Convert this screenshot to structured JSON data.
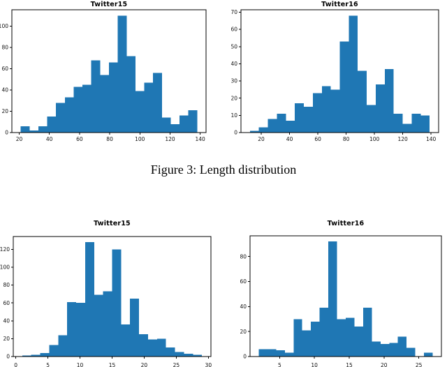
{
  "page": {
    "background": "#ffffff",
    "caption": "Figure 3: Length distribution"
  },
  "accent_color": "#1f77b4",
  "chart_data": [
    {
      "position": "top-left",
      "type": "bar",
      "subtype": "histogram",
      "title": "Twitter15",
      "xlabel": "",
      "ylabel": "",
      "grid": false,
      "bar_color": "#1f77b4",
      "bin_start": 21,
      "bin_width": 5.85,
      "values": [
        6,
        2,
        6,
        15,
        28,
        33,
        43,
        45,
        68,
        54,
        66,
        110,
        72,
        39,
        47,
        56,
        14,
        8,
        16,
        21
      ],
      "xlim": [
        15.15,
        143.85
      ],
      "ylim": [
        0,
        115.5
      ],
      "xticks": [
        20,
        40,
        60,
        80,
        100,
        120,
        140
      ],
      "yticks": [
        0,
        20,
        40,
        60,
        80,
        100
      ]
    },
    {
      "position": "top-right",
      "type": "bar",
      "subtype": "histogram",
      "title": "Twitter16",
      "xlabel": "",
      "ylabel": "",
      "grid": false,
      "bar_color": "#1f77b4",
      "bin_start": 12,
      "bin_width": 6.35,
      "values": [
        1,
        3,
        8,
        11,
        7,
        17,
        15,
        23,
        27,
        25,
        53,
        68,
        36,
        16,
        28,
        37,
        11,
        5,
        11,
        10
      ],
      "xlim": [
        5.65,
        145.35
      ],
      "ylim": [
        0,
        71.4
      ],
      "xticks": [
        20,
        40,
        60,
        80,
        100,
        120,
        140
      ],
      "yticks": [
        0,
        10,
        20,
        30,
        40,
        50,
        60,
        70
      ]
    },
    {
      "position": "bottom-left",
      "type": "bar",
      "subtype": "histogram",
      "title": "Twitter15",
      "xlabel": "",
      "ylabel": "",
      "grid": false,
      "bar_color": "#1f77b4",
      "bin_start": 1,
      "bin_width": 1.4,
      "values": [
        1,
        2,
        4,
        13,
        24,
        61,
        60,
        128,
        69,
        73,
        120,
        36,
        65,
        25,
        19,
        20,
        10,
        5,
        3,
        2
      ],
      "xlim": [
        -0.4,
        30.4
      ],
      "ylim": [
        0,
        134.4
      ],
      "xticks": [
        0,
        5,
        10,
        15,
        20,
        25,
        30
      ],
      "yticks": [
        0,
        20,
        40,
        60,
        80,
        100,
        120
      ]
    },
    {
      "position": "bottom-right",
      "type": "bar",
      "subtype": "histogram",
      "title": "Twitter16",
      "xlabel": "",
      "ylabel": "",
      "grid": false,
      "bar_color": "#1f77b4",
      "bin_start": 2,
      "bin_width": 1.25,
      "values": [
        6,
        6,
        5,
        3,
        30,
        21,
        28,
        39,
        92,
        30,
        31,
        24,
        39,
        12,
        10,
        11,
        16,
        7,
        0,
        3
      ],
      "xlim": [
        0.75,
        28.25
      ],
      "ylim": [
        0,
        96.6
      ],
      "xticks": [
        5,
        10,
        15,
        20,
        25
      ],
      "yticks": [
        0,
        20,
        40,
        60,
        80
      ]
    }
  ]
}
